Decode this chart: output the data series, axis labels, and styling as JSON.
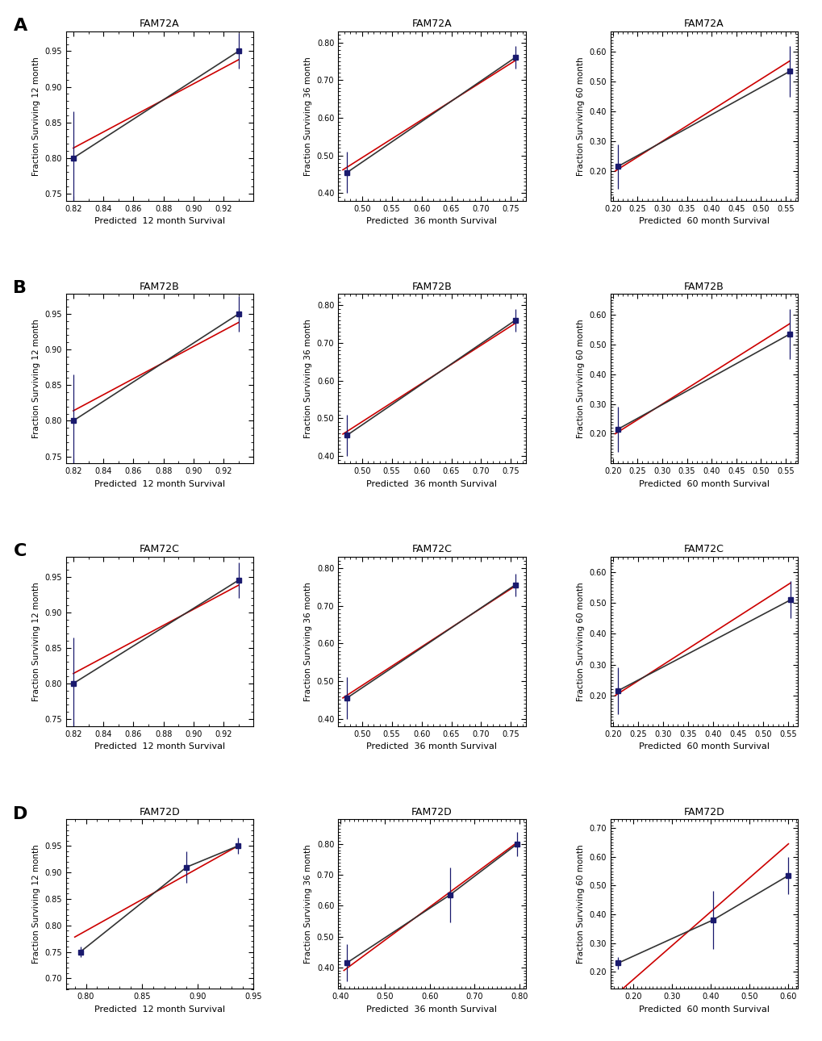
{
  "rows": [
    "A",
    "B",
    "C",
    "D"
  ],
  "row_labels": [
    "FAM72A",
    "FAM72B",
    "FAM72C",
    "FAM72D"
  ],
  "col_labels": [
    "12",
    "36",
    "60"
  ],
  "xlabels": [
    "Predicted  12 month Survival",
    "Predicted  36 month Survival",
    "Predicted  60 month Survival"
  ],
  "ylabels": [
    "Fraction Surviving 12 month",
    "Fraction Surviving 36 month",
    "Fraction Surviving 60 month"
  ],
  "panels": {
    "A12": {
      "points_x": [
        0.82,
        0.93
      ],
      "points_y": [
        0.8,
        0.95
      ],
      "yerr": [
        0.065,
        0.025
      ],
      "red_line": [
        [
          0.82,
          0.93
        ],
        [
          0.814,
          0.938
        ]
      ],
      "black_line": [
        [
          0.82,
          0.93
        ],
        [
          0.8,
          0.95
        ]
      ],
      "xlim": [
        0.815,
        0.94
      ],
      "ylim": [
        0.74,
        0.978
      ],
      "xticks": [
        0.82,
        0.84,
        0.86,
        0.88,
        0.9,
        0.92
      ],
      "yticks": [
        0.75,
        0.8,
        0.85,
        0.9,
        0.95
      ]
    },
    "A36": {
      "points_x": [
        0.475,
        0.757
      ],
      "points_y": [
        0.455,
        0.76
      ],
      "yerr": [
        0.055,
        0.03
      ],
      "red_line": [
        [
          0.468,
          0.757
        ],
        [
          0.462,
          0.752
        ]
      ],
      "black_line": [
        [
          0.475,
          0.757
        ],
        [
          0.455,
          0.76
        ]
      ],
      "xlim": [
        0.46,
        0.775
      ],
      "ylim": [
        0.38,
        0.83
      ],
      "xticks": [
        0.5,
        0.55,
        0.6,
        0.65,
        0.7,
        0.75
      ],
      "yticks": [
        0.4,
        0.5,
        0.6,
        0.7,
        0.8
      ]
    },
    "A60": {
      "points_x": [
        0.21,
        0.558
      ],
      "points_y": [
        0.215,
        0.535
      ],
      "yerr": [
        0.075,
        0.085
      ],
      "red_line": [
        [
          0.205,
          0.558
        ],
        [
          0.2,
          0.57
        ]
      ],
      "black_line": [
        [
          0.21,
          0.558
        ],
        [
          0.215,
          0.535
        ]
      ],
      "xlim": [
        0.195,
        0.575
      ],
      "ylim": [
        0.1,
        0.67
      ],
      "xticks": [
        0.2,
        0.25,
        0.3,
        0.35,
        0.4,
        0.45,
        0.5,
        0.55
      ],
      "yticks": [
        0.2,
        0.3,
        0.4,
        0.5,
        0.6
      ]
    },
    "B12": {
      "points_x": [
        0.82,
        0.93
      ],
      "points_y": [
        0.8,
        0.95
      ],
      "yerr": [
        0.065,
        0.025
      ],
      "red_line": [
        [
          0.82,
          0.93
        ],
        [
          0.814,
          0.938
        ]
      ],
      "black_line": [
        [
          0.82,
          0.93
        ],
        [
          0.8,
          0.95
        ]
      ],
      "xlim": [
        0.815,
        0.94
      ],
      "ylim": [
        0.74,
        0.978
      ],
      "xticks": [
        0.82,
        0.84,
        0.86,
        0.88,
        0.9,
        0.92
      ],
      "yticks": [
        0.75,
        0.8,
        0.85,
        0.9,
        0.95
      ]
    },
    "B36": {
      "points_x": [
        0.475,
        0.757
      ],
      "points_y": [
        0.455,
        0.76
      ],
      "yerr": [
        0.055,
        0.03
      ],
      "red_line": [
        [
          0.468,
          0.757
        ],
        [
          0.458,
          0.752
        ]
      ],
      "black_line": [
        [
          0.475,
          0.757
        ],
        [
          0.455,
          0.76
        ]
      ],
      "xlim": [
        0.46,
        0.775
      ],
      "ylim": [
        0.38,
        0.83
      ],
      "xticks": [
        0.5,
        0.55,
        0.6,
        0.65,
        0.7,
        0.75
      ],
      "yticks": [
        0.4,
        0.5,
        0.6,
        0.7,
        0.8
      ]
    },
    "B60": {
      "points_x": [
        0.21,
        0.558
      ],
      "points_y": [
        0.215,
        0.535
      ],
      "yerr": [
        0.075,
        0.085
      ],
      "red_line": [
        [
          0.205,
          0.558
        ],
        [
          0.2,
          0.57
        ]
      ],
      "black_line": [
        [
          0.21,
          0.558
        ],
        [
          0.215,
          0.535
        ]
      ],
      "xlim": [
        0.195,
        0.575
      ],
      "ylim": [
        0.1,
        0.67
      ],
      "xticks": [
        0.2,
        0.25,
        0.3,
        0.35,
        0.4,
        0.45,
        0.5,
        0.55
      ],
      "yticks": [
        0.2,
        0.3,
        0.4,
        0.5,
        0.6
      ]
    },
    "C12": {
      "points_x": [
        0.82,
        0.93
      ],
      "points_y": [
        0.8,
        0.945
      ],
      "yerr": [
        0.065,
        0.025
      ],
      "red_line": [
        [
          0.82,
          0.93
        ],
        [
          0.814,
          0.938
        ]
      ],
      "black_line": [
        [
          0.82,
          0.93
        ],
        [
          0.8,
          0.945
        ]
      ],
      "xlim": [
        0.815,
        0.94
      ],
      "ylim": [
        0.74,
        0.978
      ],
      "xticks": [
        0.82,
        0.84,
        0.86,
        0.88,
        0.9,
        0.92
      ],
      "yticks": [
        0.75,
        0.8,
        0.85,
        0.9,
        0.95
      ]
    },
    "C36": {
      "points_x": [
        0.475,
        0.757
      ],
      "points_y": [
        0.455,
        0.755
      ],
      "yerr": [
        0.055,
        0.03
      ],
      "red_line": [
        [
          0.468,
          0.757
        ],
        [
          0.455,
          0.752
        ]
      ],
      "black_line": [
        [
          0.475,
          0.757
        ],
        [
          0.455,
          0.755
        ]
      ],
      "xlim": [
        0.46,
        0.775
      ],
      "ylim": [
        0.38,
        0.83
      ],
      "xticks": [
        0.5,
        0.55,
        0.6,
        0.65,
        0.7,
        0.75
      ],
      "yticks": [
        0.4,
        0.5,
        0.6,
        0.7,
        0.8
      ]
    },
    "C60": {
      "points_x": [
        0.21,
        0.555
      ],
      "points_y": [
        0.215,
        0.51
      ],
      "yerr": [
        0.075,
        0.06
      ],
      "red_line": [
        [
          0.205,
          0.555
        ],
        [
          0.2,
          0.565
        ]
      ],
      "black_line": [
        [
          0.21,
          0.555
        ],
        [
          0.215,
          0.51
        ]
      ],
      "xlim": [
        0.195,
        0.57
      ],
      "ylim": [
        0.1,
        0.65
      ],
      "xticks": [
        0.2,
        0.25,
        0.3,
        0.35,
        0.4,
        0.45,
        0.5,
        0.55
      ],
      "yticks": [
        0.2,
        0.3,
        0.4,
        0.5,
        0.6
      ]
    },
    "D12": {
      "points_x": [
        0.795,
        0.89,
        0.936
      ],
      "points_y": [
        0.75,
        0.91,
        0.95
      ],
      "yerr": [
        0.01,
        0.03,
        0.015
      ],
      "red_line": [
        [
          0.79,
          0.936
        ],
        [
          0.778,
          0.95
        ]
      ],
      "black_line": [
        [
          0.795,
          0.89,
          0.936
        ],
        [
          0.75,
          0.91,
          0.95
        ]
      ],
      "xlim": [
        0.782,
        0.948
      ],
      "ylim": [
        0.68,
        1.0
      ],
      "xticks": [
        0.8,
        0.85,
        0.9,
        0.95
      ],
      "yticks": [
        0.7,
        0.75,
        0.8,
        0.85,
        0.9,
        0.95
      ]
    },
    "D36": {
      "points_x": [
        0.415,
        0.645,
        0.795
      ],
      "points_y": [
        0.415,
        0.635,
        0.8
      ],
      "yerr": [
        0.06,
        0.09,
        0.04
      ],
      "red_line": [
        [
          0.408,
          0.795
        ],
        [
          0.39,
          0.805
        ]
      ],
      "black_line": [
        [
          0.415,
          0.645,
          0.795
        ],
        [
          0.415,
          0.635,
          0.8
        ]
      ],
      "xlim": [
        0.395,
        0.815
      ],
      "ylim": [
        0.33,
        0.88
      ],
      "xticks": [
        0.4,
        0.5,
        0.6,
        0.7,
        0.8
      ],
      "yticks": [
        0.4,
        0.5,
        0.6,
        0.7,
        0.8
      ]
    },
    "D60": {
      "points_x": [
        0.16,
        0.405,
        0.6
      ],
      "points_y": [
        0.23,
        0.38,
        0.535
      ],
      "yerr": [
        0.02,
        0.1,
        0.065
      ],
      "red_line": [
        [
          0.15,
          0.6
        ],
        [
          0.115,
          0.645
        ]
      ],
      "black_line": [
        [
          0.16,
          0.405,
          0.6
        ],
        [
          0.23,
          0.38,
          0.535
        ]
      ],
      "xlim": [
        0.14,
        0.625
      ],
      "ylim": [
        0.14,
        0.73
      ],
      "xticks": [
        0.2,
        0.3,
        0.4,
        0.5,
        0.6
      ],
      "yticks": [
        0.2,
        0.3,
        0.4,
        0.5,
        0.6,
        0.7
      ]
    }
  },
  "point_color": "#1a1a6e",
  "red_color": "#cc0000",
  "black_line_color": "#333333",
  "bg_color": "#ffffff",
  "hspace": 0.55,
  "wspace": 0.45
}
